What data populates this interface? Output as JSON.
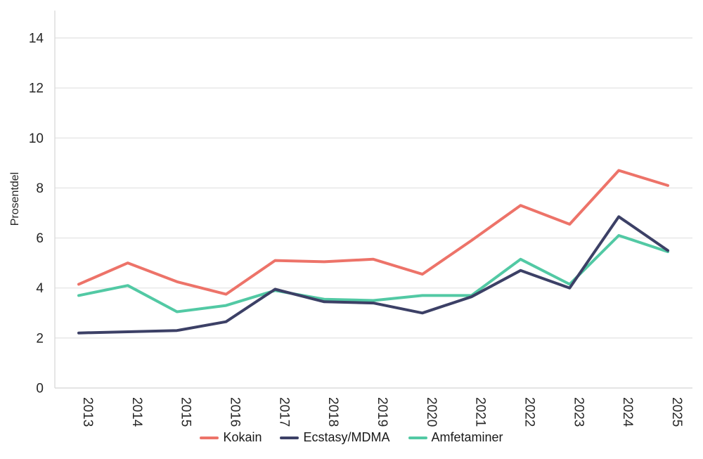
{
  "chart_data": {
    "type": "line",
    "title": "",
    "xlabel": "",
    "ylabel": "Prosentdel",
    "x": [
      2013,
      2014,
      2015,
      2016,
      2017,
      2018,
      2019,
      2020,
      2021,
      2022,
      2023,
      2024,
      2025
    ],
    "ylim": [
      0,
      15
    ],
    "y_ticks": [
      0,
      2,
      4,
      6,
      8,
      10,
      12,
      14
    ],
    "grid": "horizontal-only",
    "legend_position": "bottom-center",
    "series": [
      {
        "name": "Kokain",
        "color": "#ED7369",
        "values": [
          4.15,
          5.0,
          4.25,
          3.75,
          5.1,
          5.05,
          5.15,
          4.55,
          5.9,
          7.3,
          6.55,
          8.7,
          8.1
        ]
      },
      {
        "name": "Ecstasy/MDMA",
        "color": "#3C4066",
        "values": [
          2.2,
          2.25,
          2.3,
          2.65,
          3.95,
          3.45,
          3.4,
          3.0,
          3.65,
          4.7,
          4.0,
          6.85,
          5.5
        ]
      },
      {
        "name": "Amfetaminer",
        "color": "#52C9A4",
        "values": [
          3.7,
          4.1,
          3.05,
          3.3,
          3.9,
          3.55,
          3.5,
          3.7,
          3.7,
          5.15,
          4.15,
          6.1,
          5.45
        ]
      }
    ]
  },
  "style": {
    "gridline_color": "#E6E6E6",
    "axis_line_color": "#DCDCDC",
    "tick_text_color": "#262626",
    "background": "#FFFFFF"
  }
}
